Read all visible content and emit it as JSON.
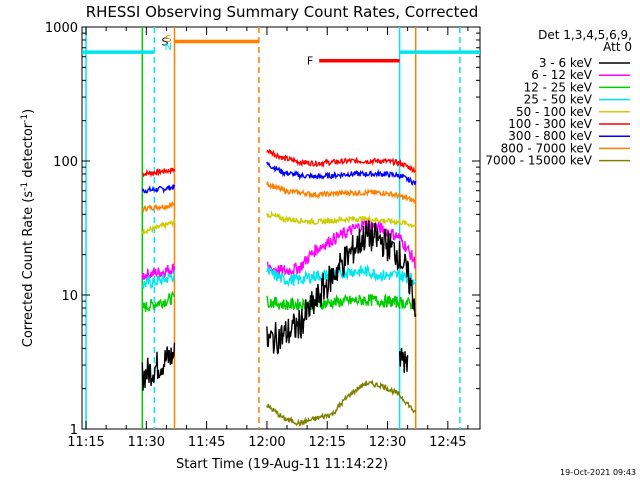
{
  "chart_data": {
    "type": "line",
    "title": "RHESSI Observing Summary Count Rates, Corrected",
    "xlabel": "Start Time (19-Aug-11 11:14:22)",
    "ylabel": "Corrected Count Rate (s",
    "ylabel_sup1": "-1",
    "ylabel_mid": " detector",
    "ylabel_sup2": "-1",
    "ylabel_end": ")",
    "yscale": "log",
    "ylim": [
      1,
      1000
    ],
    "xlim": [
      "11:14",
      "12:53"
    ],
    "x_ticks": [
      "11:15",
      "11:30",
      "11:45",
      "12:00",
      "12:15",
      "12:30",
      "12:45"
    ],
    "y_ticks": [
      "1",
      "10",
      "100",
      "1000"
    ],
    "legend": {
      "position": "right",
      "header1": "Det 1,3,4,5,6,9,",
      "header2": "Att 0",
      "entries": [
        {
          "label": "3 - 6 keV",
          "color": "#000000"
        },
        {
          "label": "6 - 12 keV",
          "color": "#ff00ff"
        },
        {
          "label": "12 - 25 keV",
          "color": "#00cc00"
        },
        {
          "label": "25 - 50 keV",
          "color": "#00e5ee"
        },
        {
          "label": "50 - 100 keV",
          "color": "#cccc00"
        },
        {
          "label": "100 - 300 keV",
          "color": "#ff0000"
        },
        {
          "label": "300 - 800 keV",
          "color": "#0000ff"
        },
        {
          "label": "800 - 7000 keV",
          "color": "#ff7f00"
        },
        {
          "label": "7000 - 15000 keV",
          "color": "#808000"
        }
      ]
    },
    "segments": [
      {
        "start": "11:29",
        "end": "11:37",
        "series": [
          {
            "band": 5,
            "values": [
              80,
              82,
              84,
              86
            ]
          },
          {
            "band": 6,
            "values": [
              60,
              61,
              62,
              64
            ]
          },
          {
            "band": 7,
            "values": [
              44,
              45,
              46,
              47
            ]
          },
          {
            "band": 4,
            "values": [
              30,
              31,
              33,
              35
            ]
          },
          {
            "band": 1,
            "values": [
              14,
              14.5,
              15,
              16
            ]
          },
          {
            "band": 3,
            "values": [
              12,
              12.5,
              13,
              14
            ]
          },
          {
            "band": 2,
            "values": [
              8,
              8.5,
              9,
              9.5
            ]
          },
          {
            "band": 0,
            "values": [
              2.5,
              2.8,
              3.2,
              3.6
            ]
          }
        ]
      },
      {
        "start": "12:00",
        "end": "12:37",
        "series": [
          {
            "band": 5,
            "values": [
              120,
              105,
              98,
              96,
              98,
              100,
              100,
              100,
              97,
              85
            ]
          },
          {
            "band": 6,
            "values": [
              95,
              82,
              78,
              76,
              78,
              80,
              80,
              80,
              78,
              68
            ]
          },
          {
            "band": 7,
            "values": [
              68,
              60,
              58,
              56,
              57,
              58,
              58,
              58,
              55,
              50
            ]
          },
          {
            "band": 4,
            "values": [
              40,
              37,
              36,
              35,
              36,
              37,
              37,
              36,
              35,
              33
            ]
          },
          {
            "band": 1,
            "values": [
              16,
              15,
              16,
              22,
              26,
              30,
              34,
              31,
              27,
              17
            ]
          },
          {
            "band": 3,
            "values": [
              15,
              13,
              13,
              14,
              14,
              15,
              15,
              14,
              14,
              13
            ]
          },
          {
            "band": 2,
            "values": [
              9,
              8.5,
              8.5,
              8.5,
              8.8,
              9,
              9.2,
              9,
              8.8,
              8.5
            ]
          },
          {
            "band": 0,
            "values": [
              4.5,
              5,
              6,
              9,
              14,
              20,
              28,
              25,
              20,
              8
            ]
          },
          {
            "band": 8,
            "values": [
              1.5,
              1.2,
              1.1,
              1.2,
              1.3,
              1.8,
              2.2,
              2.1,
              1.8,
              1.3
            ]
          }
        ]
      },
      {
        "start": "12:33",
        "end": "12:35",
        "series": [
          {
            "band": 0,
            "values": [
              3.5,
              3.3,
              3.4
            ]
          }
        ]
      }
    ],
    "vlines": [
      {
        "time": "11:15",
        "color": "#00e5ee",
        "style": "solid"
      },
      {
        "time": "11:29",
        "color": "#00cc00",
        "style": "solid"
      },
      {
        "time": "11:32",
        "color": "#00e5ee",
        "style": "dashed"
      },
      {
        "time": "11:37",
        "color": "#ff7f00",
        "style": "solid"
      },
      {
        "time": "11:58",
        "color": "#ff7f00",
        "style": "dashed"
      },
      {
        "time": "12:33",
        "color": "#00e5ee",
        "style": "solid"
      },
      {
        "time": "12:37",
        "color": "#ff7f00",
        "style": "solid"
      },
      {
        "time": "12:48",
        "color": "#00e5ee",
        "style": "dashed"
      }
    ],
    "bars": [
      {
        "label": "",
        "start": "11:14",
        "end": "11:32",
        "value": 650,
        "color": "#00e5ee"
      },
      {
        "label": "S",
        "start": "11:37",
        "end": "11:58",
        "value": 780,
        "color": "#ff7f00"
      },
      {
        "label": "F",
        "start": "12:13",
        "end": "12:33",
        "value": 560,
        "color": "#ff0000"
      },
      {
        "label": "",
        "start": "12:33",
        "end": "12:53",
        "value": 650,
        "color": "#00e5ee"
      }
    ],
    "markers": [
      {
        "label": "S",
        "time": "11:34",
        "color": "#ff7f00"
      },
      {
        "label": "N",
        "time": "11:34",
        "color": "#00e5ee"
      }
    ]
  },
  "footer": {
    "timestamp": "19-Oct-2021 09:43"
  }
}
